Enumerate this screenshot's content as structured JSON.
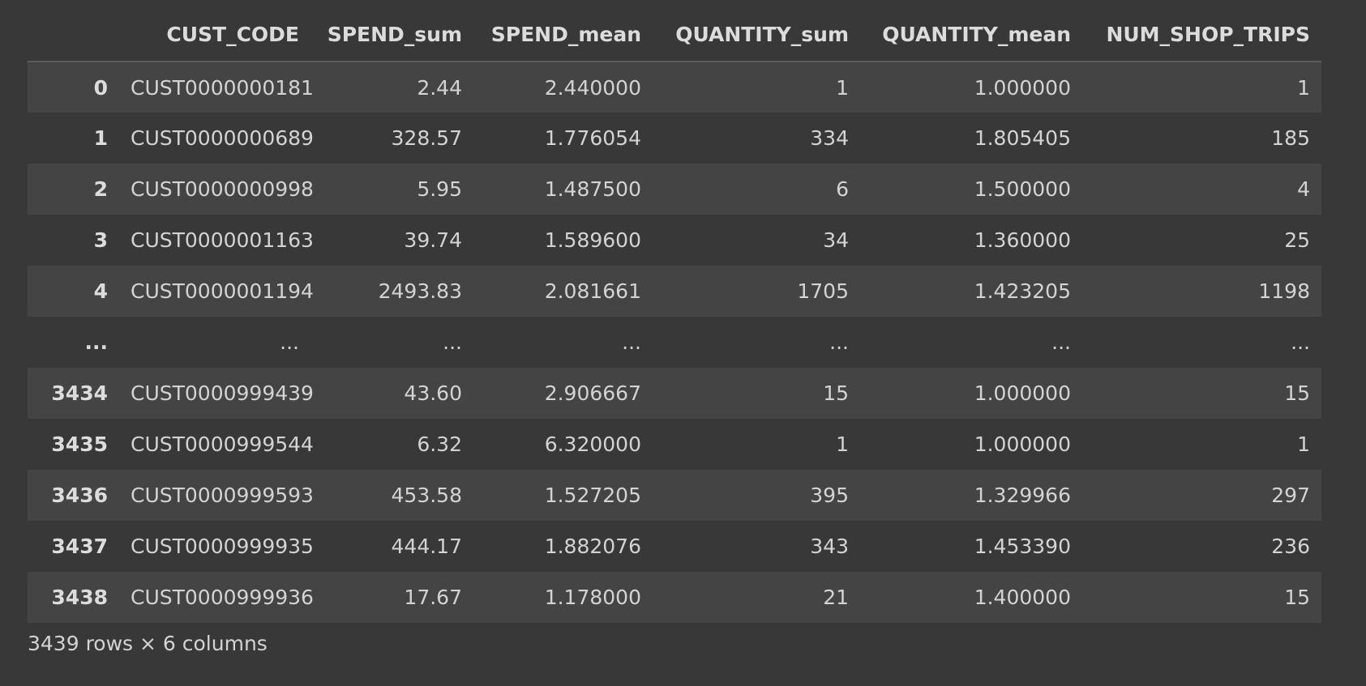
{
  "dataframe": {
    "columns": [
      "CUST_CODE",
      "SPEND_sum",
      "SPEND_mean",
      "QUANTITY_sum",
      "QUANTITY_mean",
      "NUM_SHOP_TRIPS"
    ],
    "rows": [
      {
        "index": "0",
        "values": [
          "CUST0000000181",
          "2.44",
          "2.440000",
          "1",
          "1.000000",
          "1"
        ]
      },
      {
        "index": "1",
        "values": [
          "CUST0000000689",
          "328.57",
          "1.776054",
          "334",
          "1.805405",
          "185"
        ]
      },
      {
        "index": "2",
        "values": [
          "CUST0000000998",
          "5.95",
          "1.487500",
          "6",
          "1.500000",
          "4"
        ]
      },
      {
        "index": "3",
        "values": [
          "CUST0000001163",
          "39.74",
          "1.589600",
          "34",
          "1.360000",
          "25"
        ]
      },
      {
        "index": "4",
        "values": [
          "CUST0000001194",
          "2493.83",
          "2.081661",
          "1705",
          "1.423205",
          "1198"
        ]
      },
      {
        "index": "...",
        "values": [
          "...",
          "...",
          "...",
          "...",
          "...",
          "..."
        ]
      },
      {
        "index": "3434",
        "values": [
          "CUST0000999439",
          "43.60",
          "2.906667",
          "15",
          "1.000000",
          "15"
        ]
      },
      {
        "index": "3435",
        "values": [
          "CUST0000999544",
          "6.32",
          "6.320000",
          "1",
          "1.000000",
          "1"
        ]
      },
      {
        "index": "3436",
        "values": [
          "CUST0000999593",
          "453.58",
          "1.527205",
          "395",
          "1.329966",
          "297"
        ]
      },
      {
        "index": "3437",
        "values": [
          "CUST0000999935",
          "444.17",
          "1.882076",
          "343",
          "1.453390",
          "236"
        ]
      },
      {
        "index": "3438",
        "values": [
          "CUST0000999936",
          "17.67",
          "1.178000",
          "21",
          "1.400000",
          "15"
        ]
      }
    ],
    "footer": "3439 rows × 6 columns"
  },
  "colors": {
    "background": "#383838",
    "row_stripe": "#444444",
    "text": "#d3d3d3"
  }
}
